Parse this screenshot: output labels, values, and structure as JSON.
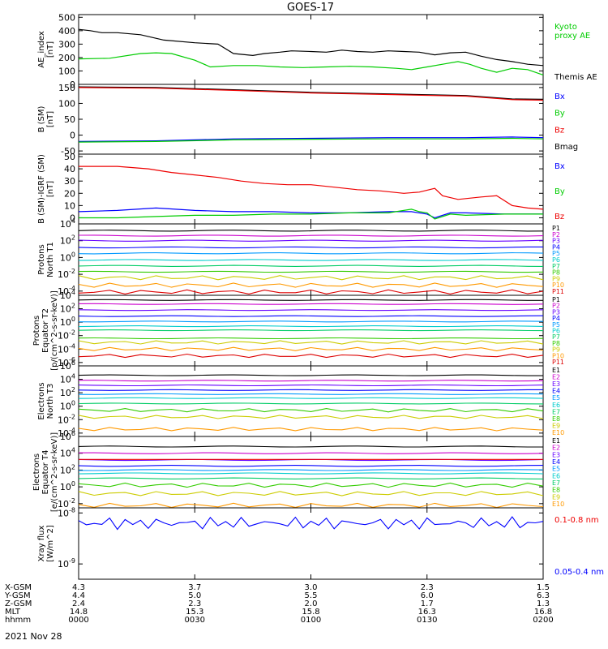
{
  "title": "GOES-17",
  "date_label": "2021 Nov 28",
  "colors": {
    "black": "#000000",
    "green": "#00cc00",
    "blue": "#0000ff",
    "red": "#ee0000",
    "p_series": [
      "#000000",
      "#cc00cc",
      "#6600ff",
      "#0000ff",
      "#0099ff",
      "#00cccc",
      "#00cc66",
      "#33cc00",
      "#cccc00",
      "#ff9900",
      "#dd0000"
    ]
  },
  "position_table": {
    "row_labels": [
      "X-GSM",
      "Y-GSM",
      "Z-GSM",
      "MLT",
      "hhmm"
    ],
    "columns": [
      [
        "4.3",
        "4.4",
        "2.4",
        "14.8",
        "0000"
      ],
      [
        "3.7",
        "5.0",
        "2.3",
        "15.3",
        "0030"
      ],
      [
        "3.0",
        "5.5",
        "2.0",
        "15.8",
        "0100"
      ],
      [
        "2.3",
        "6.0",
        "1.7",
        "16.3",
        "0130"
      ],
      [
        "1.5",
        "6.3",
        "1.3",
        "16.8",
        "0200"
      ]
    ]
  },
  "chart_data": [
    {
      "type": "line",
      "ylabel": "AE_index\n[nT]",
      "scale": "linear",
      "ylim": [
        0,
        520
      ],
      "ticks": [
        0,
        100,
        200,
        300,
        400,
        500
      ],
      "tick_labels": [
        "0",
        "100",
        "200",
        "300",
        "400",
        "500"
      ],
      "legend": [
        {
          "text": "Kyoto\nproxy AE",
          "color": "#00cc00"
        },
        {
          "text": "Themis AE",
          "color": "#000000"
        }
      ],
      "series": [
        {
          "name": "Themis AE",
          "color": "#000000",
          "x": [
            0,
            3,
            6,
            10,
            16,
            22,
            30,
            36,
            40,
            45,
            48,
            52,
            55,
            60,
            64,
            68,
            72,
            76,
            80,
            84,
            88,
            92,
            96,
            100,
            104,
            108,
            112,
            116,
            120
          ],
          "y": [
            410,
            400,
            385,
            385,
            370,
            330,
            310,
            300,
            230,
            215,
            230,
            240,
            250,
            245,
            240,
            255,
            245,
            240,
            250,
            245,
            240,
            220,
            235,
            240,
            210,
            185,
            170,
            150,
            140
          ]
        },
        {
          "name": "Kyoto proxy AE",
          "color": "#00cc00",
          "x": [
            0,
            8,
            16,
            20,
            24,
            30,
            34,
            40,
            46,
            52,
            58,
            64,
            70,
            76,
            82,
            86,
            90,
            94,
            98,
            101,
            104,
            108,
            112,
            116,
            120
          ],
          "y": [
            190,
            195,
            230,
            235,
            230,
            180,
            130,
            140,
            140,
            130,
            125,
            130,
            135,
            130,
            120,
            110,
            130,
            150,
            170,
            150,
            120,
            90,
            120,
            110,
            70
          ]
        }
      ]
    },
    {
      "type": "line",
      "ylabel": "B (SM)\n[nT]",
      "scale": "linear",
      "ylim": [
        -60,
        160
      ],
      "ticks": [
        -50,
        0,
        50,
        100,
        150
      ],
      "tick_labels": [
        "-50",
        "0",
        "50",
        "100",
        "150"
      ],
      "legend": [
        {
          "text": "Bx",
          "color": "#0000ff"
        },
        {
          "text": "By",
          "color": "#00cc00"
        },
        {
          "text": "Bz",
          "color": "#ee0000"
        },
        {
          "text": "Bmag",
          "color": "#000000"
        }
      ],
      "series": [
        {
          "name": "Bmag",
          "color": "#000000",
          "x": [
            0,
            20,
            40,
            60,
            80,
            100,
            112,
            120
          ],
          "y": [
            152,
            150,
            143,
            135,
            130,
            125,
            114,
            113
          ]
        },
        {
          "name": "Bz",
          "color": "#ee0000",
          "x": [
            0,
            20,
            40,
            60,
            80,
            100,
            112,
            120
          ],
          "y": [
            150,
            148,
            141,
            133,
            128,
            123,
            112,
            110
          ]
        },
        {
          "name": "Bx",
          "color": "#0000ff",
          "x": [
            0,
            20,
            40,
            60,
            80,
            100,
            112,
            120
          ],
          "y": [
            -20,
            -18,
            -12,
            -10,
            -8,
            -8,
            -6,
            -8
          ]
        },
        {
          "name": "By",
          "color": "#00cc00",
          "x": [
            0,
            20,
            40,
            60,
            80,
            100,
            112,
            120
          ],
          "y": [
            -22,
            -20,
            -15,
            -13,
            -12,
            -12,
            -10,
            -12
          ]
        }
      ]
    },
    {
      "type": "line",
      "ylabel": "B (SM)-IGRF (SM)\n[nT]",
      "scale": "linear",
      "ylim": [
        -5,
        52
      ],
      "ticks": [
        0,
        10,
        20,
        30,
        40,
        50
      ],
      "tick_labels": [
        "0",
        "10",
        "20",
        "30",
        "40",
        "50"
      ],
      "legend": [
        {
          "text": "Bx",
          "color": "#0000ff"
        },
        {
          "text": "By",
          "color": "#00cc00"
        },
        {
          "text": "Bz",
          "color": "#ee0000"
        }
      ],
      "series": [
        {
          "name": "Bz",
          "color": "#ee0000",
          "x": [
            0,
            10,
            18,
            24,
            30,
            36,
            42,
            48,
            54,
            60,
            66,
            72,
            78,
            84,
            88,
            92,
            94,
            98,
            104,
            108,
            112,
            116,
            120
          ],
          "y": [
            42,
            42,
            40,
            37,
            35,
            33,
            30,
            28,
            27,
            27,
            25,
            23,
            22,
            20,
            21,
            24,
            18,
            15,
            17,
            18,
            10,
            8,
            7
          ]
        },
        {
          "name": "Bx",
          "color": "#0000ff",
          "x": [
            0,
            10,
            20,
            30,
            40,
            50,
            60,
            70,
            80,
            86,
            90,
            92,
            96,
            100,
            110,
            120
          ],
          "y": [
            5,
            6,
            8,
            6,
            5,
            5,
            4,
            4,
            5,
            5,
            3,
            0,
            4,
            4,
            3,
            3
          ]
        },
        {
          "name": "By",
          "color": "#00cc00",
          "x": [
            0,
            10,
            20,
            30,
            40,
            50,
            60,
            70,
            80,
            86,
            88,
            90,
            92,
            96,
            100,
            110,
            120
          ],
          "y": [
            0,
            0,
            1,
            2,
            2,
            3,
            3,
            4,
            4,
            7,
            5,
            4,
            -1,
            3,
            2,
            3,
            3
          ]
        }
      ]
    },
    {
      "type": "line",
      "ylabel": "Protons\nNorth T1",
      "scale": "log",
      "ylim": [
        -4.5,
        4
      ],
      "ticks": [
        4,
        2,
        0,
        -2,
        -4
      ],
      "tick_labels": [
        "10^4",
        "10^2",
        "10^0",
        "10^-2",
        "10^-4"
      ],
      "legend_labels": [
        "P1",
        "P2",
        "P3",
        "P4",
        "P5",
        "P6",
        "P7",
        "P8",
        "P9",
        "P10",
        "P11"
      ],
      "series_levels_log": [
        3.2,
        2.6,
        2.0,
        1.2,
        0.5,
        -0.3,
        -1.0,
        -1.7,
        -2.4,
        -3.3,
        -4.1
      ]
    },
    {
      "type": "line",
      "ylabel": "Protons\nEquator T2\n[p/(cm^2-s-sr-keV)]",
      "scale": "log",
      "ylim": [
        -6.5,
        4
      ],
      "ticks": [
        4,
        2,
        0,
        -2,
        -4,
        -6
      ],
      "tick_labels": [
        "10^4",
        "10^2",
        "10^0",
        "10^-2",
        "10^-4",
        "10^-6"
      ],
      "legend_labels": [
        "P1",
        "P2",
        "P3",
        "P4",
        "P5",
        "P6",
        "P7",
        "P8",
        "P9",
        "P10",
        "P11"
      ],
      "series_levels_log": [
        3.3,
        2.7,
        1.8,
        0.9,
        0.1,
        -0.6,
        -1.2,
        -2.4,
        -3.0,
        -4.0,
        -5.0
      ]
    },
    {
      "type": "line",
      "ylabel": "Electrons\nNorth T3",
      "scale": "log",
      "ylim": [
        -4.5,
        6
      ],
      "ticks": [
        6,
        4,
        2,
        0,
        -2,
        -4
      ],
      "tick_labels": [
        "10^6",
        "10^4",
        "10^2",
        "10^0",
        "10^-2",
        "10^-4"
      ],
      "legend_labels": [
        "E1",
        "E2",
        "E3",
        "E4",
        "E5",
        "E6",
        "E7",
        "E8",
        "E9",
        "E10"
      ],
      "series_levels_log": [
        4.6,
        3.8,
        3.1,
        2.4,
        1.8,
        1.2,
        0.4,
        -0.6,
        -1.6,
        -3.4
      ]
    },
    {
      "type": "line",
      "ylabel": "Electrons\nEquator T4\n[e/(cm^2-s-sr-keV)]",
      "scale": "log",
      "ylim": [
        -2.5,
        6
      ],
      "ticks": [
        6,
        4,
        2,
        0,
        -2
      ],
      "tick_labels": [
        "10^6",
        "10^4",
        "10^2",
        "10^0",
        "10^-2"
      ],
      "legend_labels": [
        "E1",
        "E2",
        "E3",
        "E4",
        "E5",
        "E6",
        "E7",
        "E8",
        "E9",
        "E10"
      ],
      "series_levels_log": [
        4.8,
        4.0,
        3.2,
        2.5,
        2.0,
        1.6,
        1.0,
        0.2,
        -0.8,
        -2.2
      ]
    },
    {
      "type": "line",
      "ylabel": "Xray flux\n[W/m^2]",
      "scale": "log",
      "ylim": [
        -9.3,
        -7.9
      ],
      "ticks": [
        -8,
        -7,
        -6,
        -9
      ],
      "tick_labels": [
        "10^-8",
        "10^-7",
        "10^-6",
        "10^-9"
      ],
      "legend": [
        {
          "text": "0.1-0.8 nm",
          "color": "#ee0000"
        },
        {
          "text": "0.05-0.4 nm",
          "color": "#0000ff"
        }
      ],
      "series": [
        {
          "name": "0.1-0.8 nm",
          "color": "#ee0000",
          "level_log": -6.95
        },
        {
          "name": "0.05-0.4 nm",
          "color": "#0000ff",
          "level_log": -8.2
        }
      ]
    }
  ]
}
